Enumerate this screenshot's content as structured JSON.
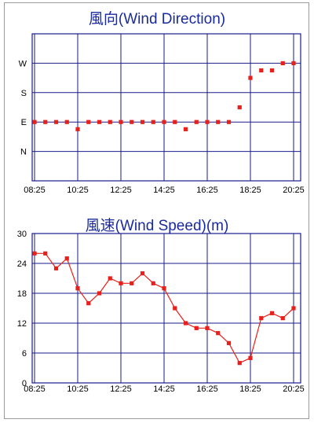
{
  "colors": {
    "grid": "#1b1b8c",
    "series": "#e8201c",
    "title": "#1a2a9c",
    "frame": "#9a9a9a"
  },
  "chart_data": [
    {
      "type": "scatter",
      "title": "風向(Wind Direction)",
      "x_ticks": [
        "08:25",
        "10:25",
        "12:25",
        "14:25",
        "16:25",
        "18:25",
        "20:25"
      ],
      "y_ticks": [
        "N",
        "E",
        "S",
        "W"
      ],
      "y_tick_values": [
        0,
        90,
        180,
        270
      ],
      "ylim": [
        -90,
        360
      ],
      "grid": true,
      "x": [
        "08:25",
        "08:55",
        "09:25",
        "09:55",
        "10:25",
        "10:55",
        "11:25",
        "11:55",
        "12:25",
        "12:55",
        "13:25",
        "13:55",
        "14:25",
        "14:55",
        "15:25",
        "15:55",
        "16:25",
        "16:55",
        "17:25",
        "17:55",
        "18:25",
        "18:55",
        "19:25",
        "19:55",
        "20:25"
      ],
      "values": [
        90,
        90,
        90,
        90,
        68,
        90,
        90,
        90,
        90,
        90,
        90,
        90,
        90,
        90,
        68,
        90,
        90,
        90,
        90,
        135,
        225,
        248,
        248,
        270,
        270
      ]
    },
    {
      "type": "line",
      "title": "風速(Wind Speed)(m)",
      "x_ticks": [
        "08:25",
        "10:25",
        "12:25",
        "14:25",
        "16:25",
        "18:25",
        "20:25"
      ],
      "y_ticks": [
        "0",
        "6",
        "12",
        "18",
        "24",
        "30"
      ],
      "ylim": [
        0,
        30
      ],
      "grid": true,
      "x": [
        "08:25",
        "08:55",
        "09:25",
        "09:55",
        "10:25",
        "10:55",
        "11:25",
        "11:55",
        "12:25",
        "12:55",
        "13:25",
        "13:55",
        "14:25",
        "14:55",
        "15:25",
        "15:55",
        "16:25",
        "16:55",
        "17:25",
        "17:55",
        "18:25",
        "18:55",
        "19:25",
        "19:55",
        "20:25"
      ],
      "values": [
        26,
        26,
        23,
        25,
        19,
        16,
        18,
        21,
        20,
        20,
        22,
        20,
        19,
        15,
        12,
        11,
        11,
        10,
        8,
        4,
        5,
        13,
        14,
        13,
        15
      ]
    }
  ]
}
